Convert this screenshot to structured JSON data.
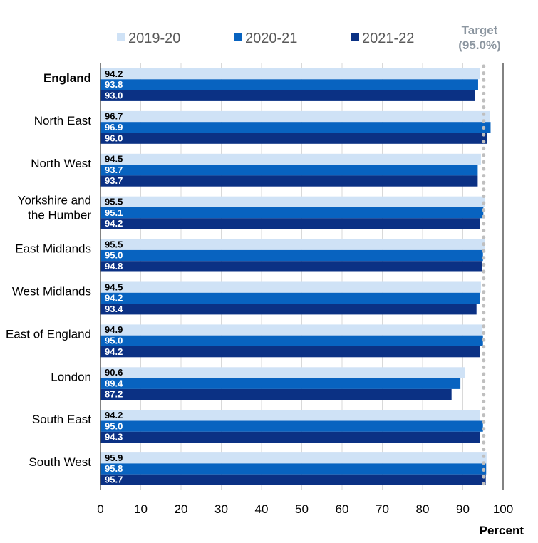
{
  "chart_data": {
    "type": "bar",
    "orientation": "horizontal",
    "categories": [
      "England",
      "North East",
      "North West",
      "Yorkshire and the Humber",
      "East Midlands",
      "West Midlands",
      "East of England",
      "London",
      "South East",
      "South West"
    ],
    "category_lines": [
      [
        "England"
      ],
      [
        "North East"
      ],
      [
        "North West"
      ],
      [
        "Yorkshire and",
        "the Humber"
      ],
      [
        "East Midlands"
      ],
      [
        "West Midlands"
      ],
      [
        "East of England"
      ],
      [
        "London"
      ],
      [
        "South East"
      ],
      [
        "South West"
      ]
    ],
    "series": [
      {
        "name": "2019-20",
        "color": "#cfe2f6",
        "values": [
          94.2,
          96.7,
          94.5,
          95.5,
          95.5,
          94.5,
          94.9,
          90.6,
          94.2,
          95.9
        ]
      },
      {
        "name": "2020-21",
        "color": "#0863c0",
        "values": [
          93.8,
          96.9,
          93.7,
          95.1,
          95.0,
          94.2,
          95.0,
          89.4,
          95.0,
          95.8
        ]
      },
      {
        "name": "2021-22",
        "color": "#0b3184",
        "values": [
          93.0,
          96.0,
          93.7,
          94.2,
          94.8,
          93.4,
          94.2,
          87.2,
          94.3,
          95.7
        ]
      }
    ],
    "xlim": [
      0,
      100
    ],
    "xticks": [
      "0",
      "10",
      "20",
      "30",
      "40",
      "50",
      "60",
      "70",
      "80",
      "90",
      "100"
    ],
    "xlabel": "Percent",
    "target": {
      "value": 95.0,
      "label_lines": [
        "Target",
        "(95.0%)"
      ],
      "color": "#bfbfbf"
    },
    "legend_position": "top",
    "bold_category": "England"
  }
}
